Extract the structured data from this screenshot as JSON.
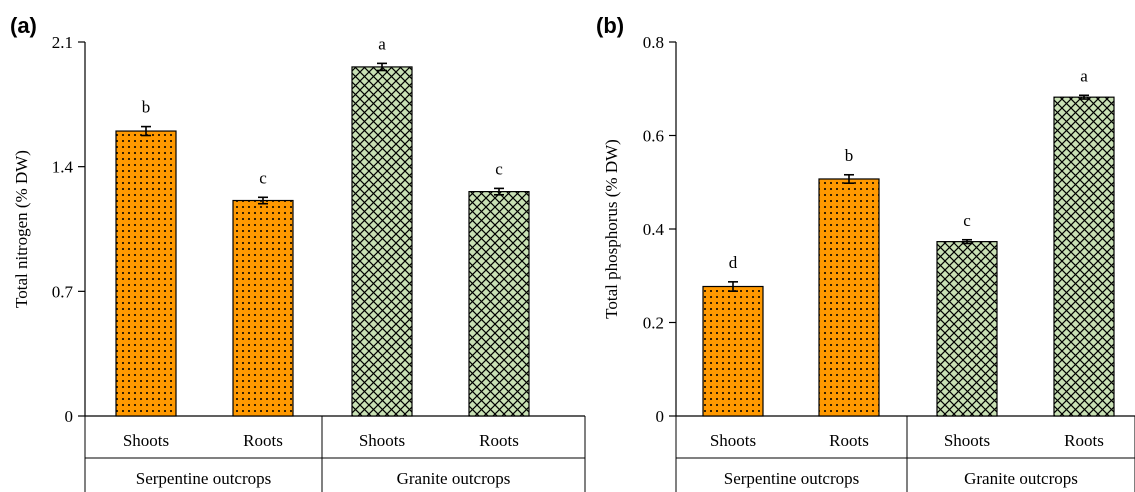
{
  "colors": {
    "serpentine_fill": "#ff9900",
    "granite_fill": "#c8e0b4",
    "pattern_ink": "#000000"
  },
  "chart_data": [
    {
      "type": "bar",
      "panel_label": "(a)",
      "ylabel": "Total nitrogen (% DW)",
      "ylim": [
        0,
        2.1
      ],
      "yticks": [
        "0",
        "0.7",
        "1.4",
        "2.1"
      ],
      "ytick_values": [
        0,
        0.7,
        1.4,
        2.1
      ],
      "categories": [
        "Shoots",
        "Roots",
        "Shoots",
        "Roots"
      ],
      "groups": [
        {
          "label": "Serpentine outcrops",
          "start": 0,
          "end": 1,
          "fill": "dots"
        },
        {
          "label": "Granite outcrops",
          "start": 2,
          "end": 3,
          "fill": "crosshatch"
        }
      ],
      "values": [
        1.6,
        1.21,
        1.96,
        1.26
      ],
      "errors": [
        0.025,
        0.018,
        0.02,
        0.018
      ],
      "significance": [
        "b",
        "c",
        "a",
        "c"
      ]
    },
    {
      "type": "bar",
      "panel_label": "(b)",
      "ylabel": "Total phosphorus (% DW)",
      "ylim": [
        0,
        0.8
      ],
      "yticks": [
        "0",
        "0.2",
        "0.4",
        "0.6",
        "0.8"
      ],
      "ytick_values": [
        0,
        0.2,
        0.4,
        0.6,
        0.8
      ],
      "categories": [
        "Shoots",
        "Roots",
        "Shoots",
        "Roots"
      ],
      "groups": [
        {
          "label": "Serpentine outcrops",
          "start": 0,
          "end": 1,
          "fill": "dots"
        },
        {
          "label": "Granite outcrops",
          "start": 2,
          "end": 3,
          "fill": "crosshatch"
        }
      ],
      "values": [
        0.277,
        0.507,
        0.373,
        0.682
      ],
      "errors": [
        0.01,
        0.009,
        0.004,
        0.004
      ],
      "significance": [
        "d",
        "b",
        "c",
        "a"
      ]
    }
  ]
}
